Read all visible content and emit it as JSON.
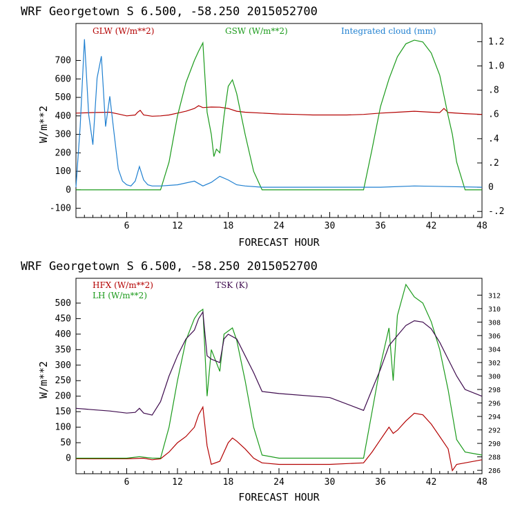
{
  "chart_data": [
    {
      "type": "line",
      "title": "WRF   Georgetown S   6.500, -58.250  2015052700",
      "xlabel": "FORECAST HOUR",
      "ylabel": "W/m**2",
      "xlim": [
        0,
        48
      ],
      "ylim": [
        -150,
        900
      ],
      "y2lim": [
        -0.25,
        1.35
      ],
      "xticks": [
        "6",
        "12",
        "18",
        "24",
        "30",
        "36",
        "42",
        "48"
      ],
      "yticks": [
        "-100",
        "0",
        "100",
        "200",
        "300",
        "400",
        "500",
        "600",
        "700"
      ],
      "y2ticks": [
        "-.2",
        "0",
        ".2",
        ".4",
        ".6",
        ".8",
        "1.0",
        "1.2"
      ],
      "series": [
        {
          "name": "GLW (W/m**2)",
          "color": "#b30000",
          "axis": "left",
          "x": [
            0,
            2,
            4,
            5,
            6,
            7,
            7.3,
            7.6,
            8,
            9,
            10,
            11,
            12,
            13,
            14,
            14.5,
            15,
            16,
            17,
            18,
            19,
            20,
            22,
            24,
            26,
            28,
            30,
            32,
            34,
            36,
            38,
            40,
            42,
            43,
            43.5,
            44,
            46,
            48
          ],
          "y": [
            415,
            418,
            420,
            410,
            400,
            405,
            420,
            430,
            405,
            398,
            400,
            405,
            415,
            425,
            440,
            455,
            445,
            448,
            447,
            440,
            425,
            420,
            415,
            410,
            408,
            405,
            405,
            405,
            408,
            415,
            420,
            425,
            420,
            418,
            440,
            418,
            412,
            408
          ]
        },
        {
          "name": "GSW (W/m**2)",
          "color": "#1a9a1a",
          "axis": "left",
          "x": [
            0,
            10,
            11,
            12,
            13,
            14,
            14.5,
            15,
            15.5,
            16,
            16.3,
            16.6,
            17,
            17.5,
            18,
            18.5,
            19,
            20,
            21,
            22,
            34,
            35,
            36,
            37,
            38,
            39,
            40,
            41,
            42,
            43,
            44,
            44.5,
            45,
            46,
            48
          ],
          "y": [
            0,
            0,
            150,
            400,
            580,
            700,
            750,
            795,
            420,
            300,
            180,
            220,
            200,
            400,
            560,
            595,
            520,
            300,
            100,
            0,
            0,
            220,
            450,
            600,
            720,
            790,
            810,
            800,
            740,
            620,
            400,
            300,
            150,
            0,
            0
          ]
        },
        {
          "name": "Integrated cloud (mm)",
          "color": "#1e7fd0",
          "axis": "right",
          "x": [
            0,
            0.5,
            1,
            1.5,
            2,
            2.5,
            3,
            3.5,
            4,
            4.5,
            5,
            5.5,
            6,
            6.5,
            7,
            7.5,
            8,
            8.5,
            9,
            10,
            12,
            14,
            15,
            16,
            17,
            18,
            19,
            20,
            22,
            24,
            30,
            36,
            40,
            48
          ],
          "y": [
            0,
            0.5,
            1.22,
            0.6,
            0.35,
            0.9,
            1.08,
            0.5,
            0.75,
            0.45,
            0.15,
            0.05,
            0.02,
            0.01,
            0.05,
            0.17,
            0.06,
            0.02,
            0.01,
            0.01,
            0.02,
            0.05,
            0.01,
            0.04,
            0.09,
            0.06,
            0.02,
            0.01,
            0,
            0,
            0,
            0,
            0.01,
            0
          ]
        }
      ]
    },
    {
      "type": "line",
      "title": "WRF   Georgetown S   6.500, -58.250  2015052700",
      "xlabel": "FORECAST HOUR",
      "ylabel": "W/m**2",
      "xlim": [
        0,
        48
      ],
      "ylim": [
        -50,
        580
      ],
      "y2lim": [
        285.5,
        314.5
      ],
      "xticks": [
        "6",
        "12",
        "18",
        "24",
        "30",
        "36",
        "42",
        "48"
      ],
      "yticks": [
        "0",
        "50",
        "100",
        "150",
        "200",
        "250",
        "300",
        "350",
        "400",
        "450",
        "500"
      ],
      "y2ticks": [
        "286",
        "288",
        "290",
        "292",
        "294",
        "296",
        "298",
        "300",
        "302",
        "304",
        "306",
        "308",
        "310",
        "312"
      ],
      "series": [
        {
          "name": "HFX (W/m**2)",
          "color": "#b30000",
          "axis": "left",
          "x": [
            0,
            6,
            8,
            9,
            10,
            11,
            12,
            13,
            14,
            14.5,
            15,
            15.5,
            16,
            17,
            18,
            18.5,
            19,
            20,
            21,
            22,
            24,
            30,
            34,
            35,
            36,
            37,
            37.5,
            38,
            39,
            40,
            41,
            42,
            43,
            44,
            44.5,
            45,
            46,
            48
          ],
          "y": [
            -2,
            -2,
            0,
            -5,
            -2,
            20,
            50,
            70,
            100,
            140,
            165,
            40,
            -20,
            -10,
            50,
            65,
            55,
            30,
            0,
            -15,
            -20,
            -20,
            -15,
            20,
            60,
            100,
            80,
            90,
            120,
            145,
            140,
            110,
            70,
            30,
            -40,
            -20,
            -15,
            -5
          ]
        },
        {
          "name": "LH  (W/m**2)",
          "color": "#1a9a1a",
          "axis": "left",
          "x": [
            0,
            6,
            7.5,
            9,
            10,
            11,
            12,
            13,
            14,
            14.5,
            15,
            15.5,
            16,
            17,
            17.5,
            18,
            18.5,
            19,
            20,
            21,
            22,
            24,
            34,
            35,
            36,
            37,
            37.5,
            38,
            39,
            40,
            41,
            42,
            43,
            44,
            45,
            46,
            48
          ],
          "y": [
            0,
            0,
            5,
            0,
            0,
            100,
            250,
            380,
            450,
            470,
            480,
            200,
            350,
            280,
            400,
            410,
            420,
            380,
            250,
            100,
            10,
            0,
            0,
            150,
            300,
            420,
            250,
            460,
            560,
            520,
            500,
            440,
            350,
            220,
            60,
            20,
            10
          ]
        },
        {
          "name": "TSK (K)",
          "color": "#3d0a4d",
          "axis": "right",
          "x": [
            0,
            2,
            4,
            6,
            7,
            7.5,
            8,
            9,
            10,
            11,
            12,
            13,
            14,
            14.5,
            15,
            15.5,
            16,
            17,
            17.5,
            18,
            19,
            20,
            21,
            22,
            24,
            30,
            34,
            35,
            36,
            37,
            38,
            39,
            40,
            41,
            42,
            43,
            44,
            45,
            46,
            48
          ],
          "y": [
            295.2,
            295.0,
            294.8,
            294.5,
            294.6,
            295.2,
            294.5,
            294.2,
            296.2,
            300.0,
            303.0,
            305.5,
            306.8,
            308.5,
            309.5,
            303.0,
            302.5,
            302.0,
            305.5,
            306.2,
            305.5,
            303.0,
            300.5,
            297.7,
            297.4,
            296.8,
            294.9,
            298.0,
            301.0,
            304.5,
            306.0,
            307.5,
            308.2,
            308.0,
            307.0,
            305.0,
            302.5,
            300.0,
            298.0,
            297.0
          ]
        }
      ]
    }
  ]
}
